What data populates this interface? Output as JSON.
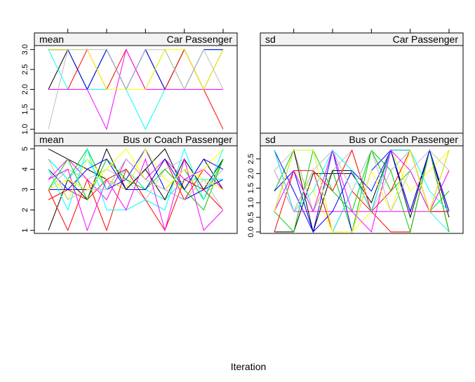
{
  "chart_data": {
    "type": "line",
    "xlabel": "Iteration",
    "x": [
      1,
      2,
      3,
      4,
      5,
      6,
      7,
      8,
      9,
      10
    ],
    "panels": [
      {
        "stat": "mean",
        "variable": "Car  Passenger",
        "ylim": [
          0.9,
          3.1
        ],
        "yticks": [
          "1.0",
          "1.5",
          "2.0",
          "2.5",
          "3.0"
        ],
        "series": [
          {
            "color": "#000000",
            "values": [
              2,
              3,
              2,
              3,
              2,
              3,
              2,
              3,
              2,
              3
            ]
          },
          {
            "color": "#ff0000",
            "values": [
              2,
              2,
              3,
              2,
              3,
              2,
              2,
              3,
              2,
              1
            ]
          },
          {
            "color": "#00cd00",
            "values": [
              3,
              3,
              2,
              3,
              2,
              2,
              3,
              2,
              3,
              3
            ]
          },
          {
            "color": "#0000ff",
            "values": [
              3,
              3,
              2,
              3,
              2,
              3,
              2,
              2,
              3,
              3
            ]
          },
          {
            "color": "#00ffff",
            "values": [
              3,
              2,
              2,
              2,
              2,
              1,
              2,
              2,
              2,
              2
            ]
          },
          {
            "color": "#ff00ff",
            "values": [
              2,
              2,
              2,
              1,
              3,
              2,
              2,
              2,
              2,
              2
            ]
          },
          {
            "color": "#ffff00",
            "values": [
              3,
              3,
              3,
              2,
              2,
              2,
              3,
              3,
              2,
              3
            ]
          },
          {
            "color": "#bebebe",
            "values": [
              1,
              3,
              3,
              3,
              2,
              3,
              3,
              2,
              3,
              2
            ]
          }
        ]
      },
      {
        "stat": "sd",
        "variable": "Car  Passenger",
        "ylim": [
          0,
          1
        ],
        "yticks": [],
        "series": []
      },
      {
        "stat": "mean",
        "variable": "Bus  or  Coach  Passenger",
        "ylim": [
          0.85,
          5.15
        ],
        "yticks": [
          "1",
          "2",
          "3",
          "4",
          "5"
        ],
        "series": [
          {
            "color": "#000000",
            "values": [
              5,
              4.5,
              4,
              3.5,
              3,
              4,
              5,
              3,
              4.5,
              3
            ]
          },
          {
            "color": "#ff0000",
            "values": [
              2.5,
              3,
              2.5,
              3.5,
              4,
              3,
              4.5,
              2.5,
              4,
              3
            ]
          },
          {
            "color": "#00cd00",
            "values": [
              4.5,
              3.5,
              5,
              3,
              4.5,
              3.5,
              3,
              4,
              2.5,
              4.5
            ]
          },
          {
            "color": "#0000ff",
            "values": [
              4,
              3,
              3,
              3,
              3.5,
              5,
              3,
              2.5,
              3,
              3.5
            ]
          },
          {
            "color": "#00ffff",
            "values": [
              4.5,
              3.5,
              4.5,
              3,
              4,
              3,
              2.5,
              3.5,
              3.5,
              3.5
            ]
          },
          {
            "color": "#ff00ff",
            "values": [
              3.5,
              4.5,
              3.5,
              2.5,
              4.5,
              3.5,
              4.5,
              3.5,
              4,
              3
            ]
          },
          {
            "color": "#ffff00",
            "values": [
              4,
              2.5,
              4.5,
              3.5,
              3,
              5,
              3.5,
              3,
              4,
              5
            ]
          },
          {
            "color": "#bebebe",
            "values": [
              3,
              4,
              3.5,
              4,
              3.5,
              2.5,
              4,
              4.5,
              3,
              4
            ]
          },
          {
            "color": "#000000",
            "values": [
              1,
              3.5,
              2.5,
              5,
              3,
              4,
              2.5,
              4.5,
              3,
              4.5
            ]
          },
          {
            "color": "#ff0000",
            "values": [
              3,
              1,
              3.5,
              1,
              4,
              2.5,
              1,
              3.5,
              3,
              2
            ]
          },
          {
            "color": "#00cd00",
            "values": [
              3,
              4.5,
              2.5,
              4.5,
              3.5,
              3,
              4,
              3,
              2,
              4.5
            ]
          },
          {
            "color": "#0000ff",
            "values": [
              3,
              3,
              4,
              4.5,
              3,
              3,
              4.5,
              3,
              4.5,
              4
            ]
          },
          {
            "color": "#00ffff",
            "values": [
              4,
              2,
              5,
              2,
              2,
              2.5,
              2,
              5,
              2.5,
              5
            ]
          },
          {
            "color": "#ff00ff",
            "values": [
              3.5,
              4,
              1,
              3.5,
              2,
              4.5,
              1,
              4.5,
              1,
              2
            ]
          },
          {
            "color": "#ffff00",
            "values": [
              3,
              3.5,
              3,
              4,
              5,
              3.5,
              3,
              4,
              3.5,
              3
            ]
          },
          {
            "color": "#bebebe",
            "values": [
              4.5,
              2.5,
              3,
              3,
              4.5,
              3.5,
              3,
              2.5,
              3.5,
              2
            ]
          }
        ]
      },
      {
        "stat": "sd",
        "variable": "Bus  or  Coach  Passenger",
        "ylim": [
          -0.05,
          2.95
        ],
        "yticks": [
          "0.0",
          "0.5",
          "1.0",
          "1.5",
          "2.0",
          "2.5"
        ],
        "series": [
          {
            "color": "#000000",
            "values": [
              0,
              0,
              2,
              2,
              2,
              1,
              2.8,
              0.5,
              2.8,
              0.5
            ]
          },
          {
            "color": "#ff0000",
            "values": [
              2.8,
              0.7,
              2.1,
              0,
              1.4,
              0.7,
              0,
              0,
              2.8,
              0
            ]
          },
          {
            "color": "#00cd00",
            "values": [
              1.4,
              2.8,
              0.7,
              2.1,
              0,
              2.8,
              1.4,
              2.1,
              0.7,
              1.4
            ]
          },
          {
            "color": "#0000ff",
            "values": [
              2.8,
              1.4,
              0,
              2.8,
              0,
              2.1,
              2.8,
              0.7,
              2.8,
              0.7
            ]
          },
          {
            "color": "#00ffff",
            "values": [
              0.7,
              2.8,
              2.8,
              0,
              1.4,
              2.8,
              2.1,
              2.8,
              0.7,
              0
            ]
          },
          {
            "color": "#ff00ff",
            "values": [
              2.1,
              0.7,
              0.7,
              0.7,
              0.7,
              0.7,
              0.7,
              0.7,
              0.7,
              0.7
            ]
          },
          {
            "color": "#ffff00",
            "values": [
              0.7,
              2.1,
              1.4,
              0,
              0,
              0.7,
              2.8,
              1.4,
              2.1,
              2.8
            ]
          },
          {
            "color": "#bebebe",
            "values": [
              2.1,
              2.8,
              0.7,
              2.1,
              2.8,
              0.7,
              2.1,
              2.8,
              0.7,
              2.1
            ]
          },
          {
            "color": "#000000",
            "values": [
              0.7,
              2.8,
              0,
              2.1,
              2.1,
              0.7,
              2.8,
              2.8,
              0.7,
              2.8
            ]
          },
          {
            "color": "#ff0000",
            "values": [
              0,
              2.1,
              2.1,
              1.4,
              2.8,
              0.7,
              1.4,
              2.8,
              0.7,
              0.7
            ]
          },
          {
            "color": "#00cd00",
            "values": [
              0.7,
              0,
              2.8,
              1.4,
              0.7,
              2.8,
              2.1,
              0,
              2.8,
              0
            ]
          },
          {
            "color": "#0000ff",
            "values": [
              1.4,
              2.1,
              0,
              0.7,
              2.1,
              1.4,
              2.8,
              0.7,
              2.8,
              0.7
            ]
          },
          {
            "color": "#00ffff",
            "values": [
              2.8,
              0.7,
              1.4,
              2.8,
              2.1,
              0.7,
              2.8,
              2.8,
              1.4,
              0.7
            ]
          },
          {
            "color": "#ff00ff",
            "values": [
              0.7,
              2.1,
              0.7,
              2.8,
              0.7,
              0,
              2.8,
              2.1,
              0.7,
              2.1
            ]
          },
          {
            "color": "#ffff00",
            "values": [
              0.7,
              2.8,
              2.8,
              0,
              0,
              2.1,
              0.7,
              2.8,
              0.7,
              2.8
            ]
          },
          {
            "color": "#bebebe",
            "values": [
              2.1,
              0.7,
              2.1,
              2.8,
              1.4,
              2.8,
              0.7,
              2.1,
              2.8,
              2.1
            ]
          }
        ]
      }
    ]
  }
}
